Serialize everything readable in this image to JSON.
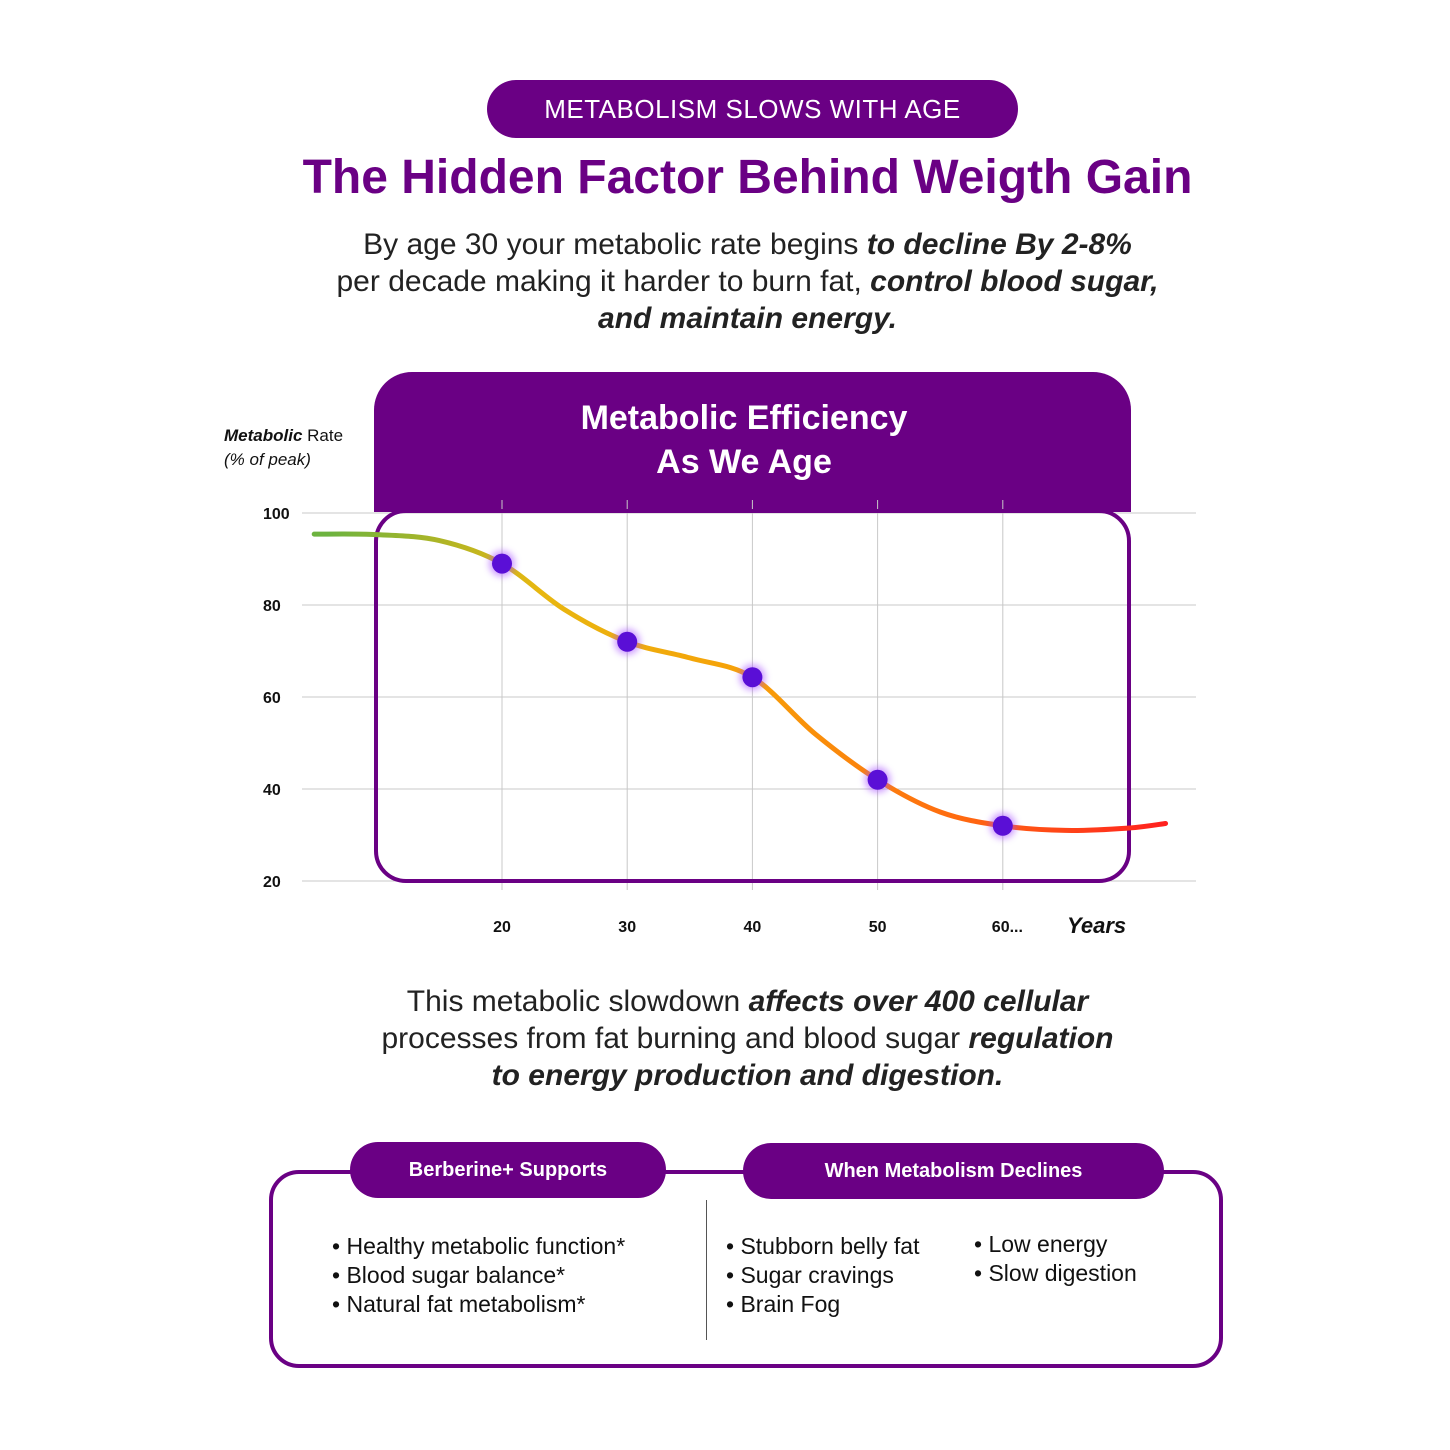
{
  "header": {
    "pill": "METABOLISM SLOWS WITH AGE",
    "headline": "The Hidden Factor Behind Weigth Gain"
  },
  "intro": {
    "p1": "By age 30 your metabolic rate begins ",
    "b1": "to decline By 2-8%",
    "p2": "per decade making it harder to burn fat, ",
    "b2": "control blood sugar,",
    "b3": "and maintain energy."
  },
  "chart_data": {
    "type": "line",
    "title_line1": "Metabolic Efficiency",
    "title_line2": "As We Age",
    "ylabel_bold": "Metabolic",
    "ylabel_rest": " Rate",
    "ylabel_sub": "(% of peak)",
    "xlabel": "Years",
    "ylim": [
      20,
      100
    ],
    "yticks": [
      100,
      80,
      60,
      40,
      20
    ],
    "xticks": [
      {
        "value": 20,
        "label": "20"
      },
      {
        "value": 30,
        "label": "30"
      },
      {
        "value": 40,
        "label": "40"
      },
      {
        "value": 50,
        "label": "50"
      },
      {
        "value": 60,
        "label": "60..."
      }
    ],
    "grid": true,
    "curve": [
      [
        5,
        95.4
      ],
      [
        10,
        95.3
      ],
      [
        15,
        94
      ],
      [
        20,
        89
      ],
      [
        25,
        79
      ],
      [
        30,
        72
      ],
      [
        35,
        68.5
      ],
      [
        40,
        64.3
      ],
      [
        45,
        52
      ],
      [
        50,
        42
      ],
      [
        55,
        35
      ],
      [
        60,
        32
      ],
      [
        65,
        31
      ],
      [
        70,
        31.5
      ],
      [
        73,
        32.5
      ]
    ],
    "markers": [
      [
        20,
        89
      ],
      [
        30,
        72
      ],
      [
        40,
        64.3
      ],
      [
        50,
        42
      ],
      [
        60,
        32
      ]
    ],
    "gradient": [
      "#6db33f",
      "#e8b710",
      "#f7a008",
      "#ff6a10",
      "#ff1f1f"
    ],
    "marker_color": "#5a0fd6"
  },
  "outro": {
    "p1": "This metabolic slowdown ",
    "b1": "affects over 400 cellular",
    "p2": "processes from fat burning and blood sugar ",
    "b2": "regulation",
    "b3": "to energy production and digestion."
  },
  "supports": {
    "title": "Berberine+ Supports",
    "items": [
      "Healthy metabolic function*",
      "Blood sugar balance*",
      "Natural fat metabolism*"
    ]
  },
  "declines": {
    "title": "When Metabolism Declines",
    "col1": [
      "Stubborn belly fat",
      "Sugar cravings",
      "Brain Fog"
    ],
    "col2": [
      "Low energy",
      "Slow digestion"
    ]
  }
}
